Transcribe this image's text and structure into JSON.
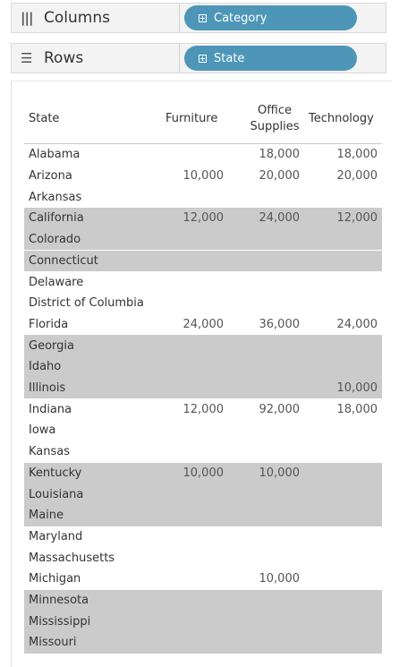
{
  "shelves": {
    "columns": {
      "label": "Columns",
      "icon": "|||",
      "pill": "Category"
    },
    "rows": {
      "label": "Rows",
      "icon": "☰",
      "pill": "State"
    }
  },
  "table": {
    "headers": {
      "state": "State",
      "furniture": "Furniture",
      "office_line1": "Office",
      "office_line2": "Supplies",
      "technology": "Technology"
    },
    "rows": [
      {
        "state": "Alabama",
        "furniture": "",
        "office": "18,000",
        "technology": "18,000"
      },
      {
        "state": "Arizona",
        "furniture": "10,000",
        "office": "20,000",
        "technology": "20,000"
      },
      {
        "state": "Arkansas",
        "furniture": "",
        "office": "",
        "technology": ""
      },
      {
        "state": "California",
        "furniture": "12,000",
        "office": "24,000",
        "technology": "12,000"
      },
      {
        "state": "Colorado",
        "furniture": "",
        "office": "",
        "technology": ""
      },
      {
        "state": "Connecticut",
        "furniture": "",
        "office": "",
        "technology": ""
      },
      {
        "state": "Delaware",
        "furniture": "",
        "office": "",
        "technology": ""
      },
      {
        "state": "District of Columbia",
        "furniture": "",
        "office": "",
        "technology": ""
      },
      {
        "state": "Florida",
        "furniture": "24,000",
        "office": "36,000",
        "technology": "24,000"
      },
      {
        "state": "Georgia",
        "furniture": "",
        "office": "",
        "technology": ""
      },
      {
        "state": "Idaho",
        "furniture": "",
        "office": "",
        "technology": ""
      },
      {
        "state": "Illinois",
        "furniture": "",
        "office": "",
        "technology": "10,000"
      },
      {
        "state": "Indiana",
        "furniture": "12,000",
        "office": "92,000",
        "technology": "18,000"
      },
      {
        "state": "Iowa",
        "furniture": "",
        "office": "",
        "technology": ""
      },
      {
        "state": "Kansas",
        "furniture": "",
        "office": "",
        "technology": ""
      },
      {
        "state": "Kentucky",
        "furniture": "10,000",
        "office": "10,000",
        "technology": ""
      },
      {
        "state": "Louisiana",
        "furniture": "",
        "office": "",
        "technology": ""
      },
      {
        "state": "Maine",
        "furniture": "",
        "office": "",
        "technology": ""
      },
      {
        "state": "Maryland",
        "furniture": "",
        "office": "",
        "technology": ""
      },
      {
        "state": "Massachusetts",
        "furniture": "",
        "office": "",
        "technology": ""
      },
      {
        "state": "Michigan",
        "furniture": "",
        "office": "10,000",
        "technology": ""
      },
      {
        "state": "Minnesota",
        "furniture": "",
        "office": "",
        "technology": ""
      },
      {
        "state": "Mississippi",
        "furniture": "",
        "office": "",
        "technology": ""
      },
      {
        "state": "Missouri",
        "furniture": "",
        "office": "",
        "technology": ""
      }
    ]
  },
  "colors": {
    "pill": "#4d96b8",
    "band": "#cbcbcb"
  }
}
